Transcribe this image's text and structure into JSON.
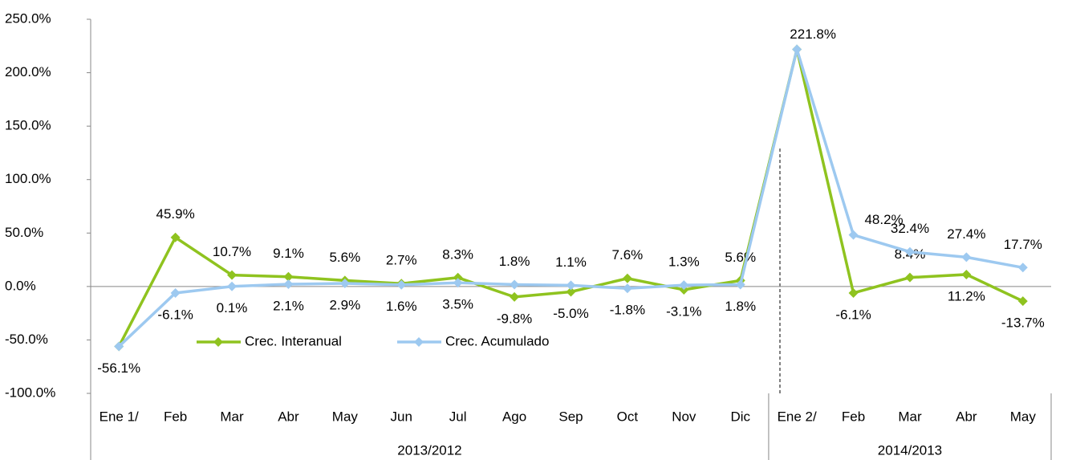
{
  "chart_data": {
    "type": "line",
    "categories": [
      "Ene 1/",
      "Feb",
      "Mar",
      "Abr",
      "May",
      "Jun",
      "Jul",
      "Ago",
      "Sep",
      "Oct",
      "Nov",
      "Dic",
      "Ene 2/",
      "Feb",
      "Mar",
      "Abr",
      "May"
    ],
    "groups": [
      {
        "name": "2013/2012",
        "from": 0,
        "to": 11
      },
      {
        "name": "2014/2013",
        "from": 12,
        "to": 16
      }
    ],
    "series": [
      {
        "name": "Crec. Interanual",
        "color": "#8fc31f",
        "values": [
          -56.1,
          45.9,
          10.7,
          9.1,
          5.6,
          2.7,
          8.3,
          -9.8,
          -5.0,
          7.6,
          -3.1,
          5.6,
          221.8,
          -6.1,
          8.4,
          11.2,
          -13.7
        ],
        "value_labels": [
          null,
          "45.9%",
          "10.7%",
          "9.1%",
          "5.6%",
          "2.7%",
          "8.3%",
          "-9.8%",
          "-5.0%",
          "7.6%",
          "-3.1%",
          "5.6%",
          "221.8%",
          "-6.1%",
          "8.4%",
          "11.2%",
          "-13.7%"
        ]
      },
      {
        "name": "Crec. Acumulado",
        "color": "#9dc9f0",
        "values": [
          -56.1,
          -6.1,
          0.1,
          2.1,
          2.9,
          1.6,
          3.5,
          1.8,
          1.1,
          -1.8,
          1.3,
          1.8,
          221.8,
          48.2,
          32.4,
          27.4,
          17.7
        ],
        "value_labels": [
          "-56.1%",
          "-6.1%",
          "0.1%",
          "2.1%",
          "2.9%",
          "1.6%",
          "3.5%",
          "1.8%",
          "1.1%",
          "-1.8%",
          "1.3%",
          "1.8%",
          null,
          "48.2%",
          "32.4%",
          "27.4%",
          "17.7%"
        ]
      }
    ],
    "ylim": [
      -100,
      250
    ],
    "yticks": [
      {
        "value": -100,
        "label": "-100.0%"
      },
      {
        "value": -50,
        "label": "-50.0%"
      },
      {
        "value": 0,
        "label": "0.0%"
      },
      {
        "value": 50,
        "label": "50.0%"
      },
      {
        "value": 100,
        "label": "100.0%"
      },
      {
        "value": 150,
        "label": "150.0%"
      },
      {
        "value": 200,
        "label": "200.0%"
      },
      {
        "value": 250,
        "label": "250.0%"
      }
    ]
  }
}
